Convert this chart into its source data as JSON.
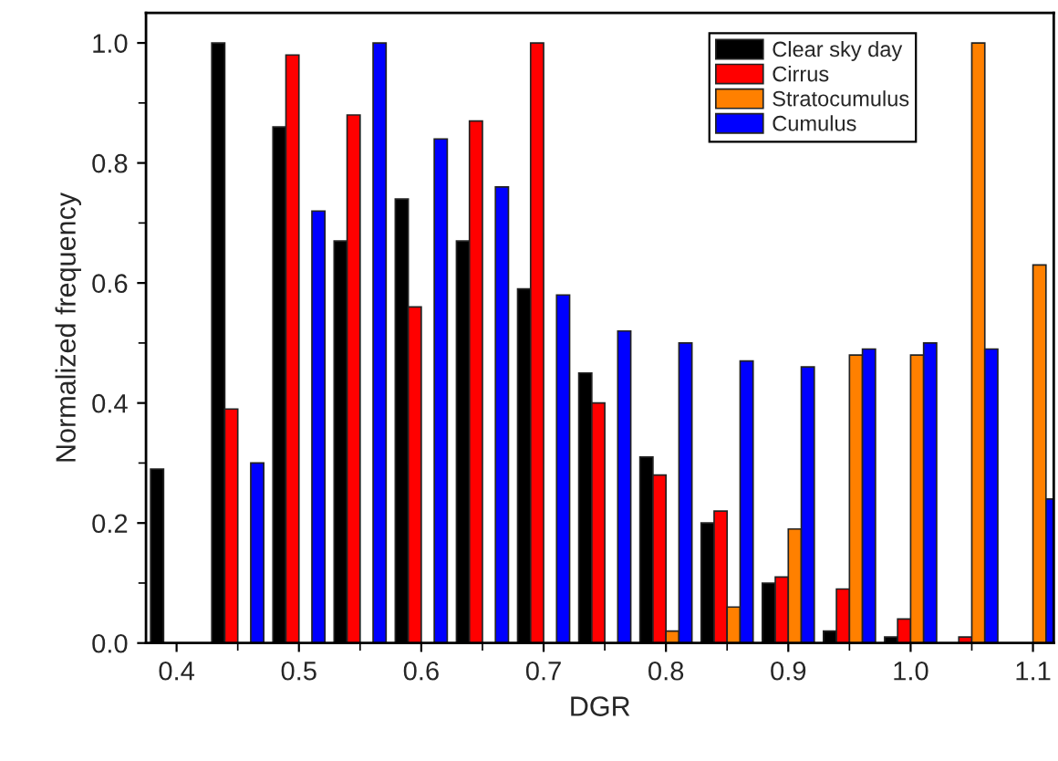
{
  "chart_data": {
    "type": "bar",
    "xlabel": "DGR",
    "ylabel": "Normalized frequency",
    "x": [
      0.4,
      0.45,
      0.5,
      0.55,
      0.6,
      0.65,
      0.7,
      0.75,
      0.8,
      0.85,
      0.9,
      0.95,
      1.0,
      1.05,
      1.1
    ],
    "series": [
      {
        "name": "Clear sky day",
        "color": "#000000",
        "values": [
          0.29,
          1.0,
          0.86,
          0.67,
          0.74,
          0.67,
          0.59,
          0.45,
          0.31,
          0.2,
          0.1,
          0.02,
          0.01,
          null,
          null
        ]
      },
      {
        "name": "Cirrus",
        "color": "#ff0000",
        "values": [
          null,
          0.39,
          0.98,
          0.88,
          0.56,
          0.87,
          1.0,
          0.4,
          0.28,
          0.22,
          0.11,
          0.09,
          0.04,
          0.01,
          null
        ]
      },
      {
        "name": "Stratocumulus",
        "color": "#ff8000",
        "values": [
          null,
          null,
          null,
          null,
          null,
          null,
          null,
          null,
          0.02,
          0.06,
          0.19,
          0.48,
          0.48,
          1.0,
          0.63
        ]
      },
      {
        "name": "Cumulus",
        "color": "#0000ff",
        "values": [
          null,
          0.3,
          0.72,
          1.0,
          0.84,
          0.76,
          0.58,
          0.52,
          0.5,
          0.47,
          0.46,
          0.49,
          0.5,
          0.49,
          0.24
        ]
      }
    ],
    "xlim": [
      0.375,
      1.117
    ],
    "xticks": [
      0.4,
      0.5,
      0.6,
      0.7,
      0.8,
      0.9,
      {
        "value": 1.0,
        "label": "1.0"
      },
      1.1
    ],
    "ylim": [
      0,
      1.05
    ],
    "yticks": [
      {
        "value": 0,
        "label": "0.0"
      },
      0.2,
      0.4,
      0.6,
      0.8,
      {
        "value": 1.0,
        "label": "1.0"
      }
    ],
    "legend": "top right",
    "grid": false
  }
}
